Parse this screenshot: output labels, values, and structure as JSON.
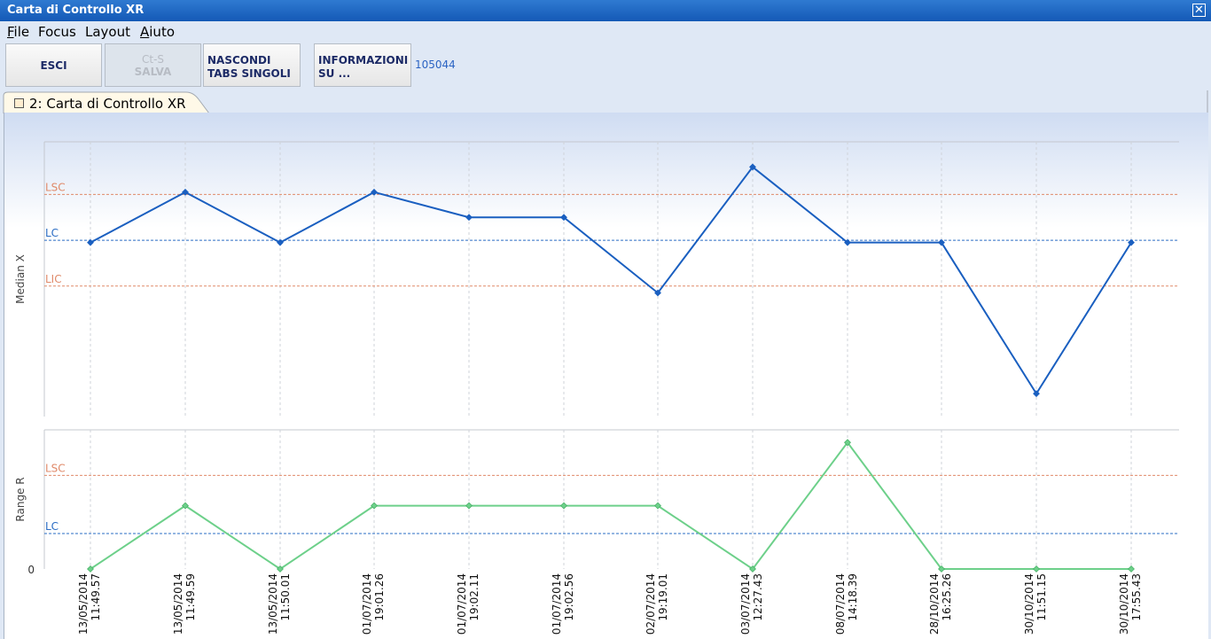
{
  "window": {
    "title": "Carta di Controllo XR",
    "close_icon": "close-icon"
  },
  "menu": [
    {
      "label": "File",
      "underline": 0
    },
    {
      "label": "Focus",
      "underline": -1
    },
    {
      "label": "Layout",
      "underline": -1
    },
    {
      "label": "Aiuto",
      "underline": 0
    }
  ],
  "toolbar": {
    "esci": "ESCI",
    "salva_shortcut": "Ct-S",
    "salva": "SALVA",
    "nascondi_1": "NASCONDI",
    "nascondi_2": "TABS SINGOLI",
    "info_1": "INFORMAZIONI",
    "info_2": "SU ...",
    "record_id": "105044"
  },
  "tab": {
    "label": "2: Carta di Controllo XR"
  },
  "colors": {
    "limit": "#e08a6a",
    "center": "#2a6cc4",
    "median_line": "#1a5fc0",
    "range_line": "#6dd08a"
  },
  "chart_data": [
    {
      "type": "line",
      "ylabel": "Median X",
      "limits": [
        {
          "name": "LSC",
          "value": 1.0
        },
        {
          "name": "LC",
          "value": 0.0
        },
        {
          "name": "LIC",
          "value": -1.0
        }
      ],
      "x": [
        "13/05/2014 11:49.57",
        "13/05/2014 11:49.59",
        "13/05/2014 11:50.01",
        "01/07/2014 19:01.26",
        "01/07/2014 19:02.11",
        "01/07/2014 19:02.56",
        "02/07/2014 19:19.01",
        "03/07/2014 12:27.43",
        "08/07/2014 14:18.39",
        "28/10/2014 16:25.26",
        "30/10/2014 11:51.15",
        "30/10/2014 17:55.43"
      ],
      "series": [
        {
          "values": [
            -0.05,
            1.05,
            -0.05,
            1.05,
            0.5,
            0.5,
            -1.15,
            1.6,
            -0.05,
            -0.05,
            -3.35,
            -0.05
          ]
        }
      ],
      "ylim": [
        -3.85,
        2.15
      ]
    },
    {
      "type": "line",
      "ylabel": "Range R",
      "limits": [
        {
          "name": "LSC",
          "value": 3.7
        },
        {
          "name": "LC",
          "value": 1.4
        }
      ],
      "y_tick": "0",
      "x": [
        "13/05/2014 11:49.57",
        "13/05/2014 11:49.59",
        "13/05/2014 11:50.01",
        "01/07/2014 19:01.26",
        "01/07/2014 19:02.11",
        "01/07/2014 19:02.56",
        "02/07/2014 19:19.01",
        "03/07/2014 12:27.43",
        "08/07/2014 14:18.39",
        "28/10/2014 16:25.26",
        "30/10/2014 11:51.15",
        "30/10/2014 17:55.43"
      ],
      "series": [
        {
          "values": [
            0,
            2.5,
            0,
            2.5,
            2.5,
            2.5,
            2.5,
            0,
            5.0,
            0,
            0,
            0
          ]
        }
      ],
      "ylim": [
        0,
        5.5
      ]
    }
  ]
}
